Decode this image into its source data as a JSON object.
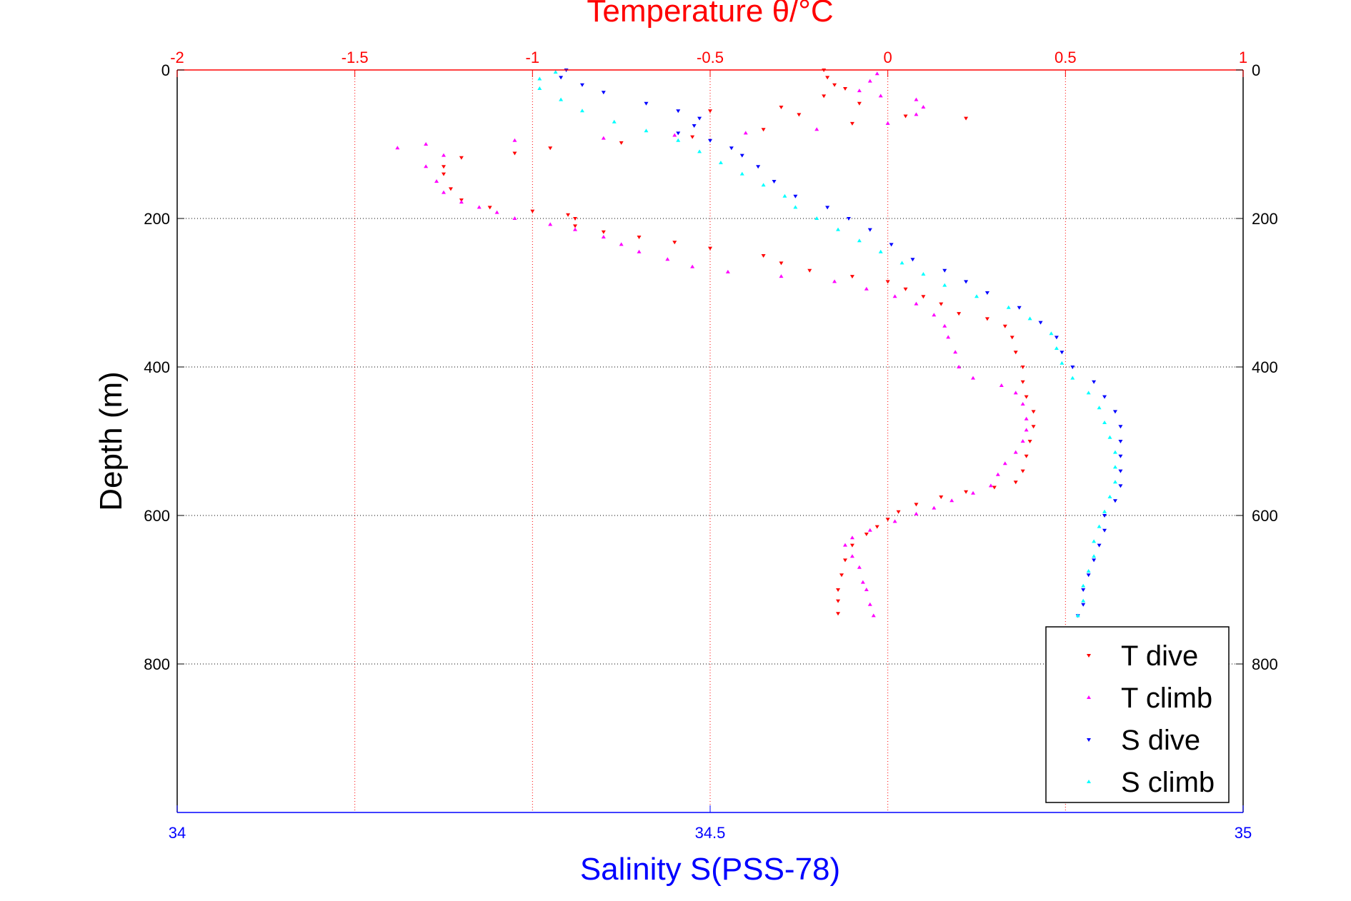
{
  "chart_data": {
    "type": "scatter",
    "title": "Temperature θ/°C",
    "xlabel": "Salinity S(PSS-78)",
    "ylabel": "Depth (m)",
    "ylim": [
      0,
      1000
    ],
    "y_reversed": true,
    "top_xlim": [
      -2,
      1
    ],
    "bottom_xlim": [
      34,
      35
    ],
    "top_ticks": [
      "-2",
      "-1.5",
      "-1",
      "-0.5",
      "0",
      "0.5",
      "1"
    ],
    "top_tick_values": [
      -2,
      -1.5,
      -1,
      -0.5,
      0,
      0.5,
      1
    ],
    "bottom_ticks": [
      "34",
      "34.5",
      "35"
    ],
    "bottom_tick_values": [
      34,
      34.5,
      35
    ],
    "y_ticks": [
      "0",
      "200",
      "400",
      "600",
      "800"
    ],
    "y_tick_values": [
      0,
      200,
      400,
      600,
      800
    ],
    "grid": true,
    "legend_position": "bottom-right",
    "colors": {
      "top_axis": "#ff0000",
      "bottom_axis": "#0000ff",
      "grid_vertical": "#ff0000",
      "grid_horizontal": "#000000"
    },
    "series": [
      {
        "name": "T dive",
        "axis": "top",
        "color": "#ff0000",
        "marker": "triangle-down",
        "points": [
          [
            -0.18,
            0
          ],
          [
            -0.17,
            10
          ],
          [
            -0.15,
            20
          ],
          [
            -0.12,
            25
          ],
          [
            -0.18,
            35
          ],
          [
            -0.08,
            45
          ],
          [
            -0.3,
            50
          ],
          [
            -0.5,
            55
          ],
          [
            -0.25,
            60
          ],
          [
            0.05,
            62
          ],
          [
            0.22,
            65
          ],
          [
            -0.1,
            72
          ],
          [
            -0.35,
            80
          ],
          [
            -0.55,
            90
          ],
          [
            -0.75,
            98
          ],
          [
            -0.95,
            105
          ],
          [
            -1.05,
            112
          ],
          [
            -1.2,
            118
          ],
          [
            -1.25,
            130
          ],
          [
            -1.25,
            140
          ],
          [
            -1.23,
            160
          ],
          [
            -1.2,
            175
          ],
          [
            -1.12,
            185
          ],
          [
            -1.0,
            190
          ],
          [
            -0.9,
            195
          ],
          [
            -0.88,
            200
          ],
          [
            -0.88,
            210
          ],
          [
            -0.8,
            218
          ],
          [
            -0.7,
            225
          ],
          [
            -0.6,
            232
          ],
          [
            -0.5,
            240
          ],
          [
            -0.35,
            250
          ],
          [
            -0.3,
            260
          ],
          [
            -0.22,
            270
          ],
          [
            -0.1,
            278
          ],
          [
            0.0,
            285
          ],
          [
            0.05,
            295
          ],
          [
            0.1,
            305
          ],
          [
            0.15,
            315
          ],
          [
            0.2,
            328
          ],
          [
            0.28,
            335
          ],
          [
            0.33,
            345
          ],
          [
            0.35,
            360
          ],
          [
            0.36,
            380
          ],
          [
            0.38,
            400
          ],
          [
            0.38,
            420
          ],
          [
            0.39,
            440
          ],
          [
            0.41,
            460
          ],
          [
            0.41,
            480
          ],
          [
            0.4,
            500
          ],
          [
            0.39,
            520
          ],
          [
            0.38,
            540
          ],
          [
            0.36,
            555
          ],
          [
            0.3,
            562
          ],
          [
            0.22,
            568
          ],
          [
            0.15,
            575
          ],
          [
            0.08,
            585
          ],
          [
            0.03,
            595
          ],
          [
            0.0,
            605
          ],
          [
            -0.03,
            615
          ],
          [
            -0.06,
            625
          ],
          [
            -0.1,
            640
          ],
          [
            -0.12,
            660
          ],
          [
            -0.13,
            680
          ],
          [
            -0.14,
            700
          ],
          [
            -0.14,
            715
          ],
          [
            -0.14,
            732
          ]
        ]
      },
      {
        "name": "T climb",
        "axis": "top",
        "color": "#ff00ff",
        "marker": "triangle-up",
        "points": [
          [
            -0.04,
            735
          ],
          [
            -0.05,
            720
          ],
          [
            -0.06,
            700
          ],
          [
            -0.07,
            690
          ],
          [
            -0.08,
            670
          ],
          [
            -0.1,
            655
          ],
          [
            -0.12,
            640
          ],
          [
            -0.1,
            630
          ],
          [
            -0.05,
            620
          ],
          [
            0.02,
            608
          ],
          [
            0.08,
            598
          ],
          [
            0.13,
            590
          ],
          [
            0.18,
            580
          ],
          [
            0.24,
            570
          ],
          [
            0.29,
            560
          ],
          [
            0.31,
            545
          ],
          [
            0.33,
            530
          ],
          [
            0.36,
            515
          ],
          [
            0.38,
            500
          ],
          [
            0.39,
            485
          ],
          [
            0.39,
            470
          ],
          [
            0.38,
            450
          ],
          [
            0.36,
            435
          ],
          [
            0.32,
            425
          ],
          [
            0.24,
            415
          ],
          [
            0.2,
            400
          ],
          [
            0.19,
            380
          ],
          [
            0.17,
            360
          ],
          [
            0.16,
            345
          ],
          [
            0.13,
            330
          ],
          [
            0.08,
            315
          ],
          [
            0.02,
            305
          ],
          [
            -0.06,
            295
          ],
          [
            -0.15,
            285
          ],
          [
            -0.3,
            278
          ],
          [
            -0.45,
            272
          ],
          [
            -0.55,
            265
          ],
          [
            -0.62,
            255
          ],
          [
            -0.7,
            245
          ],
          [
            -0.75,
            235
          ],
          [
            -0.8,
            225
          ],
          [
            -0.88,
            215
          ],
          [
            -0.95,
            208
          ],
          [
            -1.05,
            200
          ],
          [
            -1.1,
            192
          ],
          [
            -1.15,
            185
          ],
          [
            -1.2,
            178
          ],
          [
            -1.25,
            165
          ],
          [
            -1.27,
            150
          ],
          [
            -1.3,
            130
          ],
          [
            -1.25,
            115
          ],
          [
            -1.38,
            105
          ],
          [
            -1.3,
            100
          ],
          [
            -1.05,
            95
          ],
          [
            -0.8,
            92
          ],
          [
            -0.6,
            88
          ],
          [
            -0.4,
            85
          ],
          [
            -0.2,
            80
          ],
          [
            0.0,
            72
          ],
          [
            0.08,
            60
          ],
          [
            0.1,
            50
          ],
          [
            0.08,
            40
          ],
          [
            -0.02,
            35
          ],
          [
            -0.08,
            28
          ],
          [
            -0.05,
            15
          ],
          [
            -0.03,
            5
          ]
        ]
      },
      {
        "name": "S dive",
        "axis": "bottom",
        "color": "#0000ff",
        "marker": "triangle-down",
        "points": [
          [
            34.365,
            0
          ],
          [
            34.36,
            10
          ],
          [
            34.38,
            20
          ],
          [
            34.4,
            30
          ],
          [
            34.44,
            45
          ],
          [
            34.47,
            55
          ],
          [
            34.49,
            65
          ],
          [
            34.485,
            75
          ],
          [
            34.47,
            85
          ],
          [
            34.5,
            95
          ],
          [
            34.52,
            105
          ],
          [
            34.53,
            115
          ],
          [
            34.545,
            130
          ],
          [
            34.56,
            150
          ],
          [
            34.58,
            170
          ],
          [
            34.61,
            185
          ],
          [
            34.63,
            200
          ],
          [
            34.65,
            215
          ],
          [
            34.67,
            235
          ],
          [
            34.69,
            255
          ],
          [
            34.72,
            270
          ],
          [
            34.74,
            285
          ],
          [
            34.76,
            300
          ],
          [
            34.79,
            320
          ],
          [
            34.81,
            340
          ],
          [
            34.825,
            360
          ],
          [
            34.83,
            380
          ],
          [
            34.84,
            400
          ],
          [
            34.86,
            420
          ],
          [
            34.87,
            440
          ],
          [
            34.88,
            460
          ],
          [
            34.885,
            480
          ],
          [
            34.885,
            500
          ],
          [
            34.885,
            520
          ],
          [
            34.885,
            540
          ],
          [
            34.885,
            560
          ],
          [
            34.88,
            580
          ],
          [
            34.87,
            600
          ],
          [
            34.87,
            620
          ],
          [
            34.865,
            640
          ],
          [
            34.86,
            660
          ],
          [
            34.855,
            680
          ],
          [
            34.85,
            700
          ],
          [
            34.85,
            720
          ],
          [
            34.845,
            735
          ]
        ]
      },
      {
        "name": "S climb",
        "axis": "bottom",
        "color": "#00ffff",
        "marker": "triangle-up",
        "points": [
          [
            34.845,
            735
          ],
          [
            34.85,
            715
          ],
          [
            34.85,
            695
          ],
          [
            34.855,
            675
          ],
          [
            34.86,
            655
          ],
          [
            34.86,
            635
          ],
          [
            34.865,
            615
          ],
          [
            34.87,
            595
          ],
          [
            34.875,
            575
          ],
          [
            34.88,
            555
          ],
          [
            34.88,
            535
          ],
          [
            34.88,
            515
          ],
          [
            34.875,
            495
          ],
          [
            34.87,
            475
          ],
          [
            34.865,
            455
          ],
          [
            34.855,
            435
          ],
          [
            34.84,
            415
          ],
          [
            34.83,
            395
          ],
          [
            34.825,
            375
          ],
          [
            34.82,
            355
          ],
          [
            34.8,
            335
          ],
          [
            34.78,
            320
          ],
          [
            34.75,
            305
          ],
          [
            34.72,
            290
          ],
          [
            34.7,
            275
          ],
          [
            34.68,
            260
          ],
          [
            34.66,
            245
          ],
          [
            34.64,
            230
          ],
          [
            34.62,
            215
          ],
          [
            34.6,
            200
          ],
          [
            34.58,
            185
          ],
          [
            34.57,
            170
          ],
          [
            34.55,
            155
          ],
          [
            34.53,
            140
          ],
          [
            34.51,
            125
          ],
          [
            34.49,
            110
          ],
          [
            34.47,
            95
          ],
          [
            34.44,
            82
          ],
          [
            34.41,
            70
          ],
          [
            34.38,
            55
          ],
          [
            34.36,
            40
          ],
          [
            34.34,
            25
          ],
          [
            34.34,
            12
          ],
          [
            34.355,
            3
          ]
        ]
      }
    ]
  }
}
